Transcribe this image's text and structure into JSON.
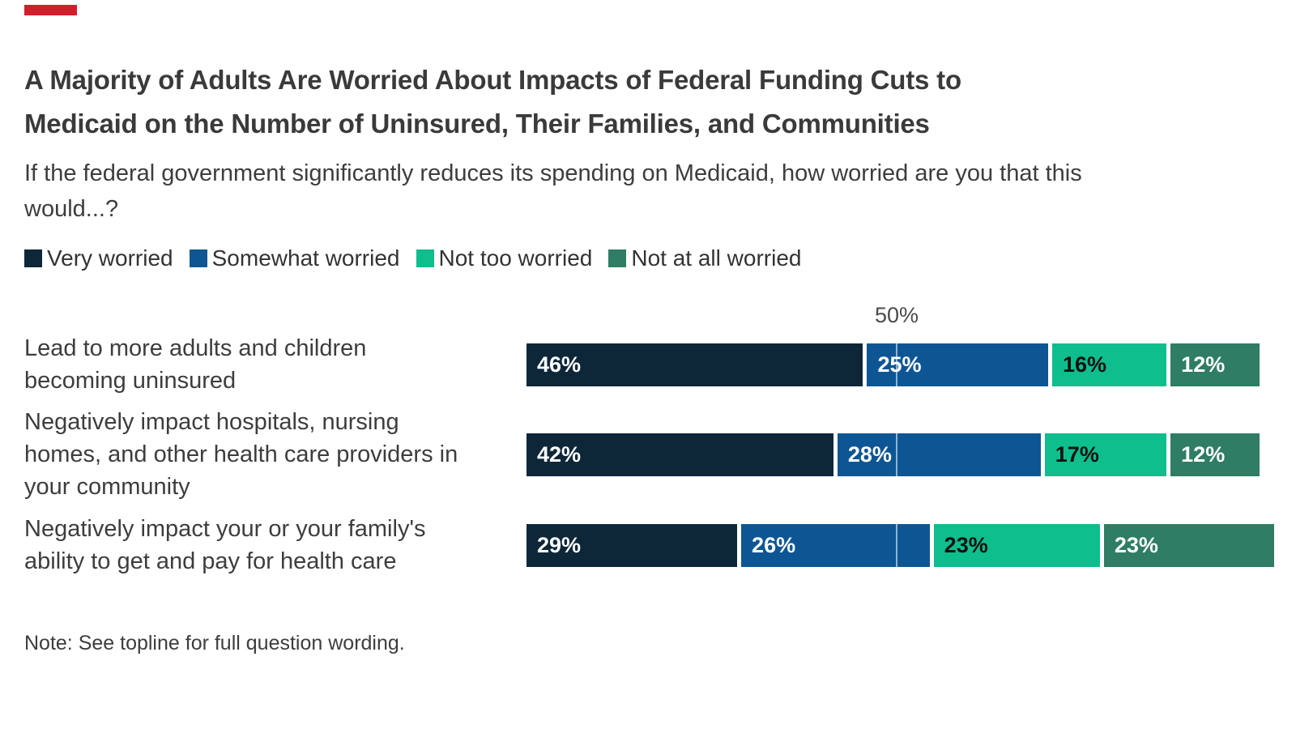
{
  "brand": {
    "mark_color": "#d21f2c"
  },
  "header": {
    "title": "A Majority of Adults Are Worried About Impacts of Federal Funding Cuts to\nMedicaid on the Number of Uninsured, Their Families, and Communities",
    "subtitle": "If the federal government significantly reduces its spending on Medicaid, how worried are you that this\nwould...?"
  },
  "legend": {
    "items": [
      {
        "label": "Very worried",
        "color": "#0d2739"
      },
      {
        "label": "Somewhat worried",
        "color": "#0e5693"
      },
      {
        "label": "Not too worried",
        "color": "#0ebe8d"
      },
      {
        "label": "Not at all worried",
        "color": "#2e7d64"
      }
    ]
  },
  "chart_data": {
    "type": "bar",
    "orientation": "horizontal",
    "stacked": true,
    "grid": "single tick line at 50%",
    "legend_position": "top",
    "xlim": [
      0,
      100
    ],
    "axis_tick": {
      "value": 50,
      "label": "50%"
    },
    "value_suffix": "%",
    "categories": [
      "Lead to more adults and children\nbecoming uninsured",
      "Negatively impact hospitals, nursing\nhomes, and other health care providers in\nyour community",
      "Negatively impact your or your family's\nability to get and pay for health care"
    ],
    "series": [
      {
        "name": "Very worried",
        "color": "#0d2739",
        "text_color": "#ffffff",
        "values": [
          46,
          42,
          29
        ]
      },
      {
        "name": "Somewhat worried",
        "color": "#0e5693",
        "text_color": "#ffffff",
        "values": [
          25,
          28,
          26
        ]
      },
      {
        "name": "Not too worried",
        "color": "#0ebe8d",
        "text_color": "#111111",
        "values": [
          16,
          17,
          23
        ]
      },
      {
        "name": "Not at all worried",
        "color": "#2e7d64",
        "text_color": "#ffffff",
        "values": [
          12,
          12,
          23
        ]
      }
    ]
  },
  "note": "Note: See topline for full question wording."
}
